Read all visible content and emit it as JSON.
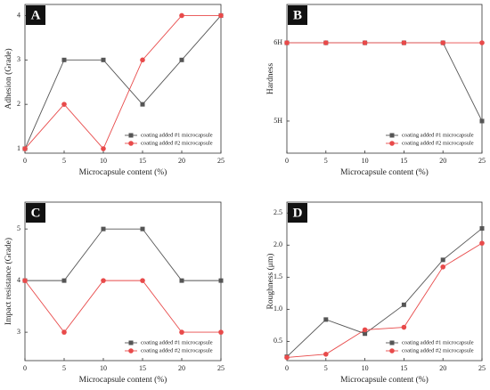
{
  "chart_data": [
    {
      "type": "line",
      "panel_label": "A",
      "xlabel": "Microcapsule content (%)",
      "ylabel": "Adhesion (Grade)",
      "x": [
        0,
        5,
        10,
        15,
        20,
        25
      ],
      "xlim": [
        0,
        25
      ],
      "xticks": [
        0,
        5,
        10,
        15,
        20,
        25
      ],
      "ylim": [
        0.9,
        4.25
      ],
      "yticks": [
        1,
        2,
        3,
        4
      ],
      "legend": "lower right",
      "series": [
        {
          "name": "coating added #1 microcapsule",
          "color": "#555555",
          "marker": "square",
          "values": [
            1,
            3,
            3,
            2,
            3,
            4
          ]
        },
        {
          "name": "coating added #2 microcapsule",
          "color": "#e84a4a",
          "marker": "circle",
          "values": [
            1,
            2,
            1,
            3,
            4,
            4
          ]
        }
      ]
    },
    {
      "type": "line",
      "panel_label": "B",
      "xlabel": "Microcapsule content (%)",
      "ylabel": "Hardness",
      "x": [
        0,
        5,
        10,
        15,
        20,
        25
      ],
      "xlim": [
        0,
        25
      ],
      "xticks": [
        0,
        5,
        10,
        15,
        20,
        25
      ],
      "ylim": [
        4.59,
        6.49
      ],
      "yticks": [
        {
          "value": 5,
          "label": "5H"
        },
        {
          "value": 6,
          "label": "6H"
        }
      ],
      "legend": "lower right",
      "series": [
        {
          "name": "coating added #1 microcapsule",
          "color": "#555555",
          "marker": "square",
          "values": [
            6,
            6,
            6,
            6,
            6,
            5
          ]
        },
        {
          "name": "coating added #2 microcapsule",
          "color": "#e84a4a",
          "marker": "circle",
          "values": [
            6,
            6,
            6,
            6,
            6,
            6
          ]
        }
      ]
    },
    {
      "type": "line",
      "panel_label": "C",
      "xlabel": "Microcapsule content (%)",
      "ylabel": "Impact resistance (Grade)",
      "x": [
        0,
        5,
        10,
        15,
        20,
        25
      ],
      "xlim": [
        0,
        25
      ],
      "xticks": [
        0,
        5,
        10,
        15,
        20,
        25
      ],
      "ylim": [
        2.45,
        5.52
      ],
      "yticks": [
        3,
        4,
        5
      ],
      "legend": "lower right",
      "series": [
        {
          "name": "coating added #1 microcapsule",
          "color": "#555555",
          "marker": "square",
          "values": [
            4,
            4,
            5,
            5,
            4,
            4
          ]
        },
        {
          "name": "coating added #2 microcapsule",
          "color": "#e84a4a",
          "marker": "circle",
          "values": [
            4,
            3,
            4,
            4,
            3,
            3
          ]
        }
      ]
    },
    {
      "type": "line",
      "panel_label": "D",
      "xlabel": "Microcapsule content (%)",
      "ylabel": "Roughness (μm)",
      "x": [
        0,
        5,
        10,
        15,
        20,
        25
      ],
      "xlim": [
        0,
        25
      ],
      "xticks": [
        0,
        5,
        10,
        15,
        20,
        25
      ],
      "ylim": [
        0.2,
        2.67
      ],
      "yticks": [
        0.5,
        {
          "value": 1,
          "label": "1.0"
        },
        1.5,
        {
          "value": 2,
          "label": "2.0"
        },
        2.5
      ],
      "legend": "lower right",
      "series": [
        {
          "name": "coating added #1 microcapsule",
          "color": "#555555",
          "marker": "square",
          "values": [
            0.26,
            0.84,
            0.62,
            1.07,
            1.77,
            2.26
          ]
        },
        {
          "name": "coating added #2 microcapsule",
          "color": "#e84a4a",
          "marker": "circle",
          "values": [
            0.25,
            0.3,
            0.68,
            0.72,
            1.66,
            2.03
          ]
        }
      ]
    }
  ]
}
